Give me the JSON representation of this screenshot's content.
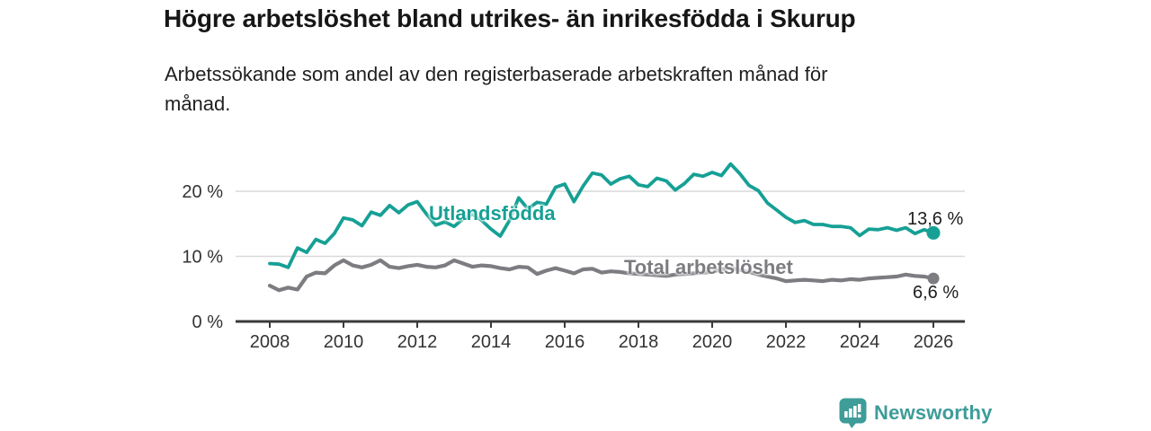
{
  "header": {
    "title": "Högre arbetslöshet bland utrikes- än inrikesfödda i Skurup",
    "subtitle_line1": "Arbetssökande som andel av den registerbaserade arbetskraften månad för",
    "subtitle_line2": "månad."
  },
  "chart_data": {
    "type": "line",
    "title": "Högre arbetslöshet bland utrikes- än inrikesfödda i Skurup",
    "subtitle": "Arbetssökande som andel av den registerbaserade arbetskraften månad för månad.",
    "unit": "percent",
    "grid": "horizontal",
    "xlim": [
      2007.1,
      2026.9
    ],
    "ylim": [
      0,
      26
    ],
    "xticks": [
      2008,
      2010,
      2012,
      2014,
      2016,
      2018,
      2020,
      2022,
      2024,
      2026
    ],
    "yticks": {
      "values": [
        0,
        10,
        20
      ],
      "labels": [
        "0 %",
        "10 %",
        "20 %"
      ]
    },
    "x": [
      2008,
      2008.25,
      2008.5,
      2008.75,
      2009,
      2009.25,
      2009.5,
      2009.75,
      2010,
      2010.25,
      2010.5,
      2010.75,
      2011,
      2011.25,
      2011.5,
      2011.75,
      2012,
      2012.25,
      2012.5,
      2012.75,
      2013,
      2013.25,
      2013.5,
      2013.75,
      2014,
      2014.25,
      2014.5,
      2014.75,
      2015,
      2015.25,
      2015.5,
      2015.75,
      2016,
      2016.25,
      2016.5,
      2016.75,
      2017,
      2017.25,
      2017.5,
      2017.75,
      2018,
      2018.25,
      2018.5,
      2018.75,
      2019,
      2019.25,
      2019.5,
      2019.75,
      2020,
      2020.25,
      2020.5,
      2020.75,
      2021,
      2021.25,
      2021.5,
      2021.75,
      2022,
      2022.25,
      2022.5,
      2022.75,
      2023,
      2023.25,
      2023.5,
      2023.75,
      2024,
      2024.25,
      2024.5,
      2024.75,
      2025,
      2025.25,
      2025.5,
      2025.75,
      2026
    ],
    "series": [
      {
        "id": "utlandsfodda",
        "name": "Utlandsfödda",
        "color": "#16A095",
        "end_value": 13.6,
        "end_label": "13,6 %",
        "values": [
          8.9,
          8.8,
          8.3,
          11.3,
          10.6,
          12.6,
          12.0,
          13.5,
          15.9,
          15.6,
          14.7,
          16.8,
          16.3,
          17.8,
          16.7,
          17.9,
          18.4,
          16.5,
          14.8,
          15.3,
          14.6,
          15.8,
          16.5,
          15.5,
          14.2,
          13.1,
          15.5,
          19.0,
          17.3,
          18.3,
          18.0,
          20.6,
          21.1,
          18.4,
          20.8,
          22.8,
          22.5,
          21.1,
          21.9,
          22.3,
          21.0,
          20.7,
          22.0,
          21.6,
          20.2,
          21.2,
          22.6,
          22.3,
          22.9,
          22.4,
          24.2,
          22.7,
          20.9,
          20.1,
          18.2,
          17.1,
          16.0,
          15.2,
          15.5,
          14.9,
          14.9,
          14.6,
          14.6,
          14.4,
          13.2,
          14.2,
          14.1,
          14.4,
          14.0,
          14.4,
          13.5,
          14.1,
          13.6
        ]
      },
      {
        "id": "total-arbetsloshet",
        "name": "Total arbetslöshet",
        "color": "#7C7C81",
        "end_value": 6.6,
        "end_label": "6,6 %",
        "values": [
          5.5,
          4.8,
          5.2,
          4.9,
          6.9,
          7.5,
          7.4,
          8.6,
          9.4,
          8.6,
          8.3,
          8.7,
          9.4,
          8.4,
          8.2,
          8.5,
          8.7,
          8.4,
          8.3,
          8.6,
          9.4,
          8.9,
          8.4,
          8.6,
          8.5,
          8.2,
          8.0,
          8.4,
          8.3,
          7.3,
          7.8,
          8.2,
          7.8,
          7.4,
          8.0,
          8.1,
          7.5,
          7.7,
          7.6,
          7.4,
          7.3,
          7.2,
          7.1,
          7.0,
          7.2,
          7.3,
          7.4,
          7.5,
          7.6,
          8.0,
          8.2,
          7.9,
          7.6,
          7.2,
          6.9,
          6.6,
          6.2,
          6.3,
          6.4,
          6.3,
          6.2,
          6.4,
          6.3,
          6.5,
          6.4,
          6.6,
          6.7,
          6.8,
          6.9,
          7.2,
          7.0,
          6.9,
          6.6
        ]
      }
    ],
    "legend_position": "inline-labels"
  },
  "colors": {
    "accent_teal": "#16A095",
    "series_gray": "#7C7C81",
    "axis_text": "#333333",
    "gridline": "#D9D9D9",
    "brand_teal": "#3E9C99"
  },
  "footer": {
    "brand": "Newsworthy",
    "logo_icon": "bar-chart-speech-bubble"
  }
}
